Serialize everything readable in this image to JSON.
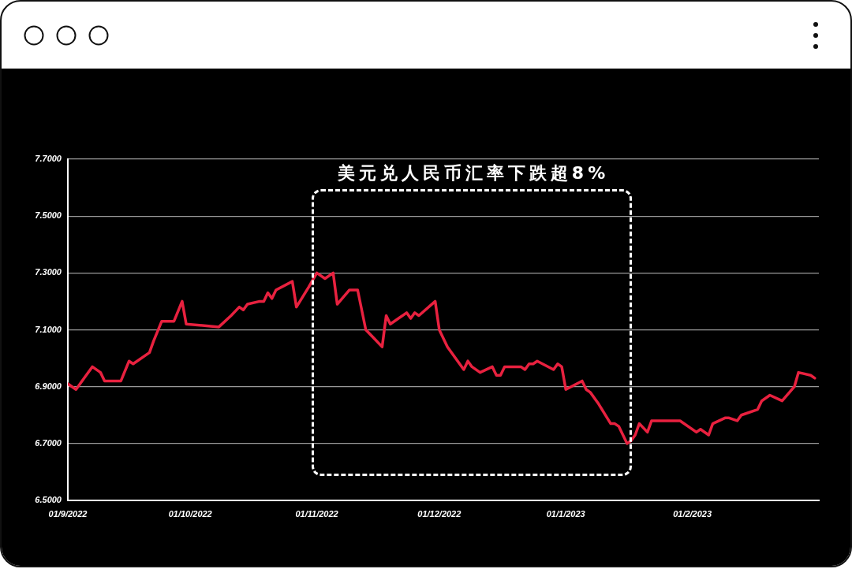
{
  "chart_data": {
    "type": "line",
    "x": [
      "2022-09-01",
      "2022-09-03",
      "2022-09-05",
      "2022-09-07",
      "2022-09-09",
      "2022-09-10",
      "2022-09-14",
      "2022-09-16",
      "2022-09-17",
      "2022-09-21",
      "2022-09-22",
      "2022-09-24",
      "2022-09-27",
      "2022-09-29",
      "2022-09-30",
      "2022-10-08",
      "2022-10-11",
      "2022-10-13",
      "2022-10-14",
      "2022-10-15",
      "2022-10-18",
      "2022-10-19",
      "2022-10-20",
      "2022-10-21",
      "2022-10-22",
      "2022-10-26",
      "2022-10-27",
      "2022-10-30",
      "2022-11-01",
      "2022-11-03",
      "2022-11-05",
      "2022-11-06",
      "2022-11-09",
      "2022-11-11",
      "2022-11-13",
      "2022-11-15",
      "2022-11-17",
      "2022-11-18",
      "2022-11-19",
      "2022-11-23",
      "2022-11-24",
      "2022-11-25",
      "2022-11-26",
      "2022-11-30",
      "2022-12-01",
      "2022-12-03",
      "2022-12-07",
      "2022-12-08",
      "2022-12-09",
      "2022-12-11",
      "2022-12-14",
      "2022-12-15",
      "2022-12-16",
      "2022-12-17",
      "2022-12-21",
      "2022-12-22",
      "2022-12-23",
      "2022-12-24",
      "2022-12-25",
      "2022-12-29",
      "2022-12-30",
      "2022-12-31",
      "2023-01-01",
      "2023-01-05",
      "2023-01-06",
      "2023-01-07",
      "2023-01-09",
      "2023-01-12",
      "2023-01-13",
      "2023-01-14",
      "2023-01-16",
      "2023-01-17",
      "2023-01-18",
      "2023-01-19",
      "2023-01-21",
      "2023-01-22",
      "2023-01-29",
      "2023-02-02",
      "2023-02-03",
      "2023-02-05",
      "2023-02-06",
      "2023-02-09",
      "2023-02-10",
      "2023-02-12",
      "2023-02-13",
      "2023-02-17",
      "2023-02-18",
      "2023-02-20",
      "2023-02-23",
      "2023-02-26",
      "2023-02-27",
      "2023-03-02",
      "2023-03-03"
    ],
    "series": [
      {
        "color": "#e8213f",
        "values": [
          6.91,
          6.89,
          6.93,
          6.97,
          6.95,
          6.92,
          6.92,
          6.99,
          6.98,
          7.02,
          7.06,
          7.13,
          7.13,
          7.2,
          7.12,
          7.11,
          7.15,
          7.18,
          7.17,
          7.19,
          7.2,
          7.2,
          7.23,
          7.21,
          7.24,
          7.27,
          7.18,
          7.25,
          7.3,
          7.28,
          7.3,
          7.19,
          7.24,
          7.24,
          7.1,
          7.07,
          7.04,
          7.15,
          7.12,
          7.16,
          7.14,
          7.16,
          7.15,
          7.2,
          7.1,
          7.04,
          6.96,
          6.99,
          6.97,
          6.95,
          6.97,
          6.94,
          6.94,
          6.97,
          6.97,
          6.96,
          6.98,
          6.98,
          6.99,
          6.96,
          6.98,
          6.97,
          6.89,
          6.92,
          6.89,
          6.88,
          6.84,
          6.77,
          6.77,
          6.76,
          6.7,
          6.71,
          6.73,
          6.77,
          6.74,
          6.78,
          6.78,
          6.74,
          6.75,
          6.73,
          6.77,
          6.79,
          6.79,
          6.78,
          6.8,
          6.82,
          6.85,
          6.87,
          6.85,
          6.9,
          6.95,
          6.94,
          6.93
        ]
      }
    ],
    "xlim": [
      "2022-09-01",
      "2023-03-04"
    ],
    "xticks": [
      {
        "value": "2022-09-01",
        "label": "01/9/2022"
      },
      {
        "value": "2022-10-01",
        "label": "01/10/2022"
      },
      {
        "value": "2022-11-01",
        "label": "01/11/2022"
      },
      {
        "value": "2022-12-01",
        "label": "01/12/2022"
      },
      {
        "value": "2023-01-01",
        "label": "01/1/2023"
      },
      {
        "value": "2023-02-01",
        "label": "01/2/2023"
      }
    ],
    "ylim": [
      6.5,
      7.7
    ],
    "yticks": [
      {
        "value": 6.5,
        "label": "6.5000"
      },
      {
        "value": 6.7,
        "label": "6.7000"
      },
      {
        "value": 6.9,
        "label": "6.9000"
      },
      {
        "value": 7.1,
        "label": "7.1000"
      },
      {
        "value": 7.3,
        "label": "7.3000"
      },
      {
        "value": 7.5,
        "label": "7.5000"
      },
      {
        "value": 7.7,
        "label": "7.7000"
      }
    ],
    "grid": "y",
    "marker": "none",
    "line_style": "solid",
    "annotations": [
      "美元兑人民币汇率下跌超8%"
    ]
  }
}
